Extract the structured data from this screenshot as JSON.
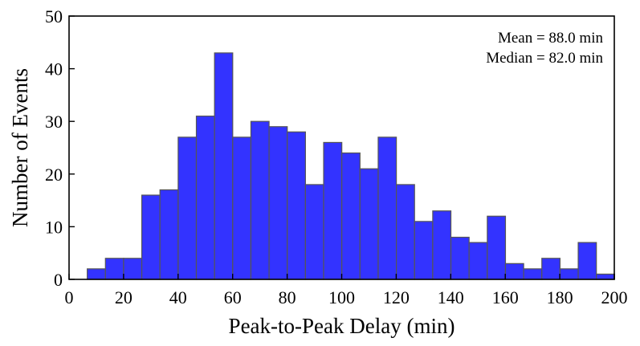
{
  "chart_data": {
    "type": "bar",
    "title": "",
    "xlabel": "Peak-to-Peak Delay (min)",
    "ylabel": "Number of Events",
    "xlim": [
      0,
      200
    ],
    "ylim": [
      0,
      50
    ],
    "xticks": [
      0,
      20,
      40,
      60,
      80,
      100,
      120,
      140,
      160,
      180,
      200
    ],
    "yticks": [
      0,
      10,
      20,
      30,
      40,
      50
    ],
    "bin_width": 6.67,
    "bin_start": 6.67,
    "bin_edges_note": "bins of width ~6.67 min starting at ~6.67 min",
    "values": [
      2,
      4,
      4,
      16,
      17,
      27,
      31,
      43,
      27,
      30,
      29,
      28,
      18,
      26,
      24,
      21,
      27,
      18,
      11,
      13,
      8,
      7,
      12,
      3,
      2,
      4,
      2,
      7,
      1
    ],
    "bar_color": "#3333ff",
    "bar_edge_color": "#555555",
    "annotations": [
      "Mean = 88.0 min",
      "Median = 82.0 min"
    ],
    "annotation_position": "top-right",
    "grid": false
  }
}
